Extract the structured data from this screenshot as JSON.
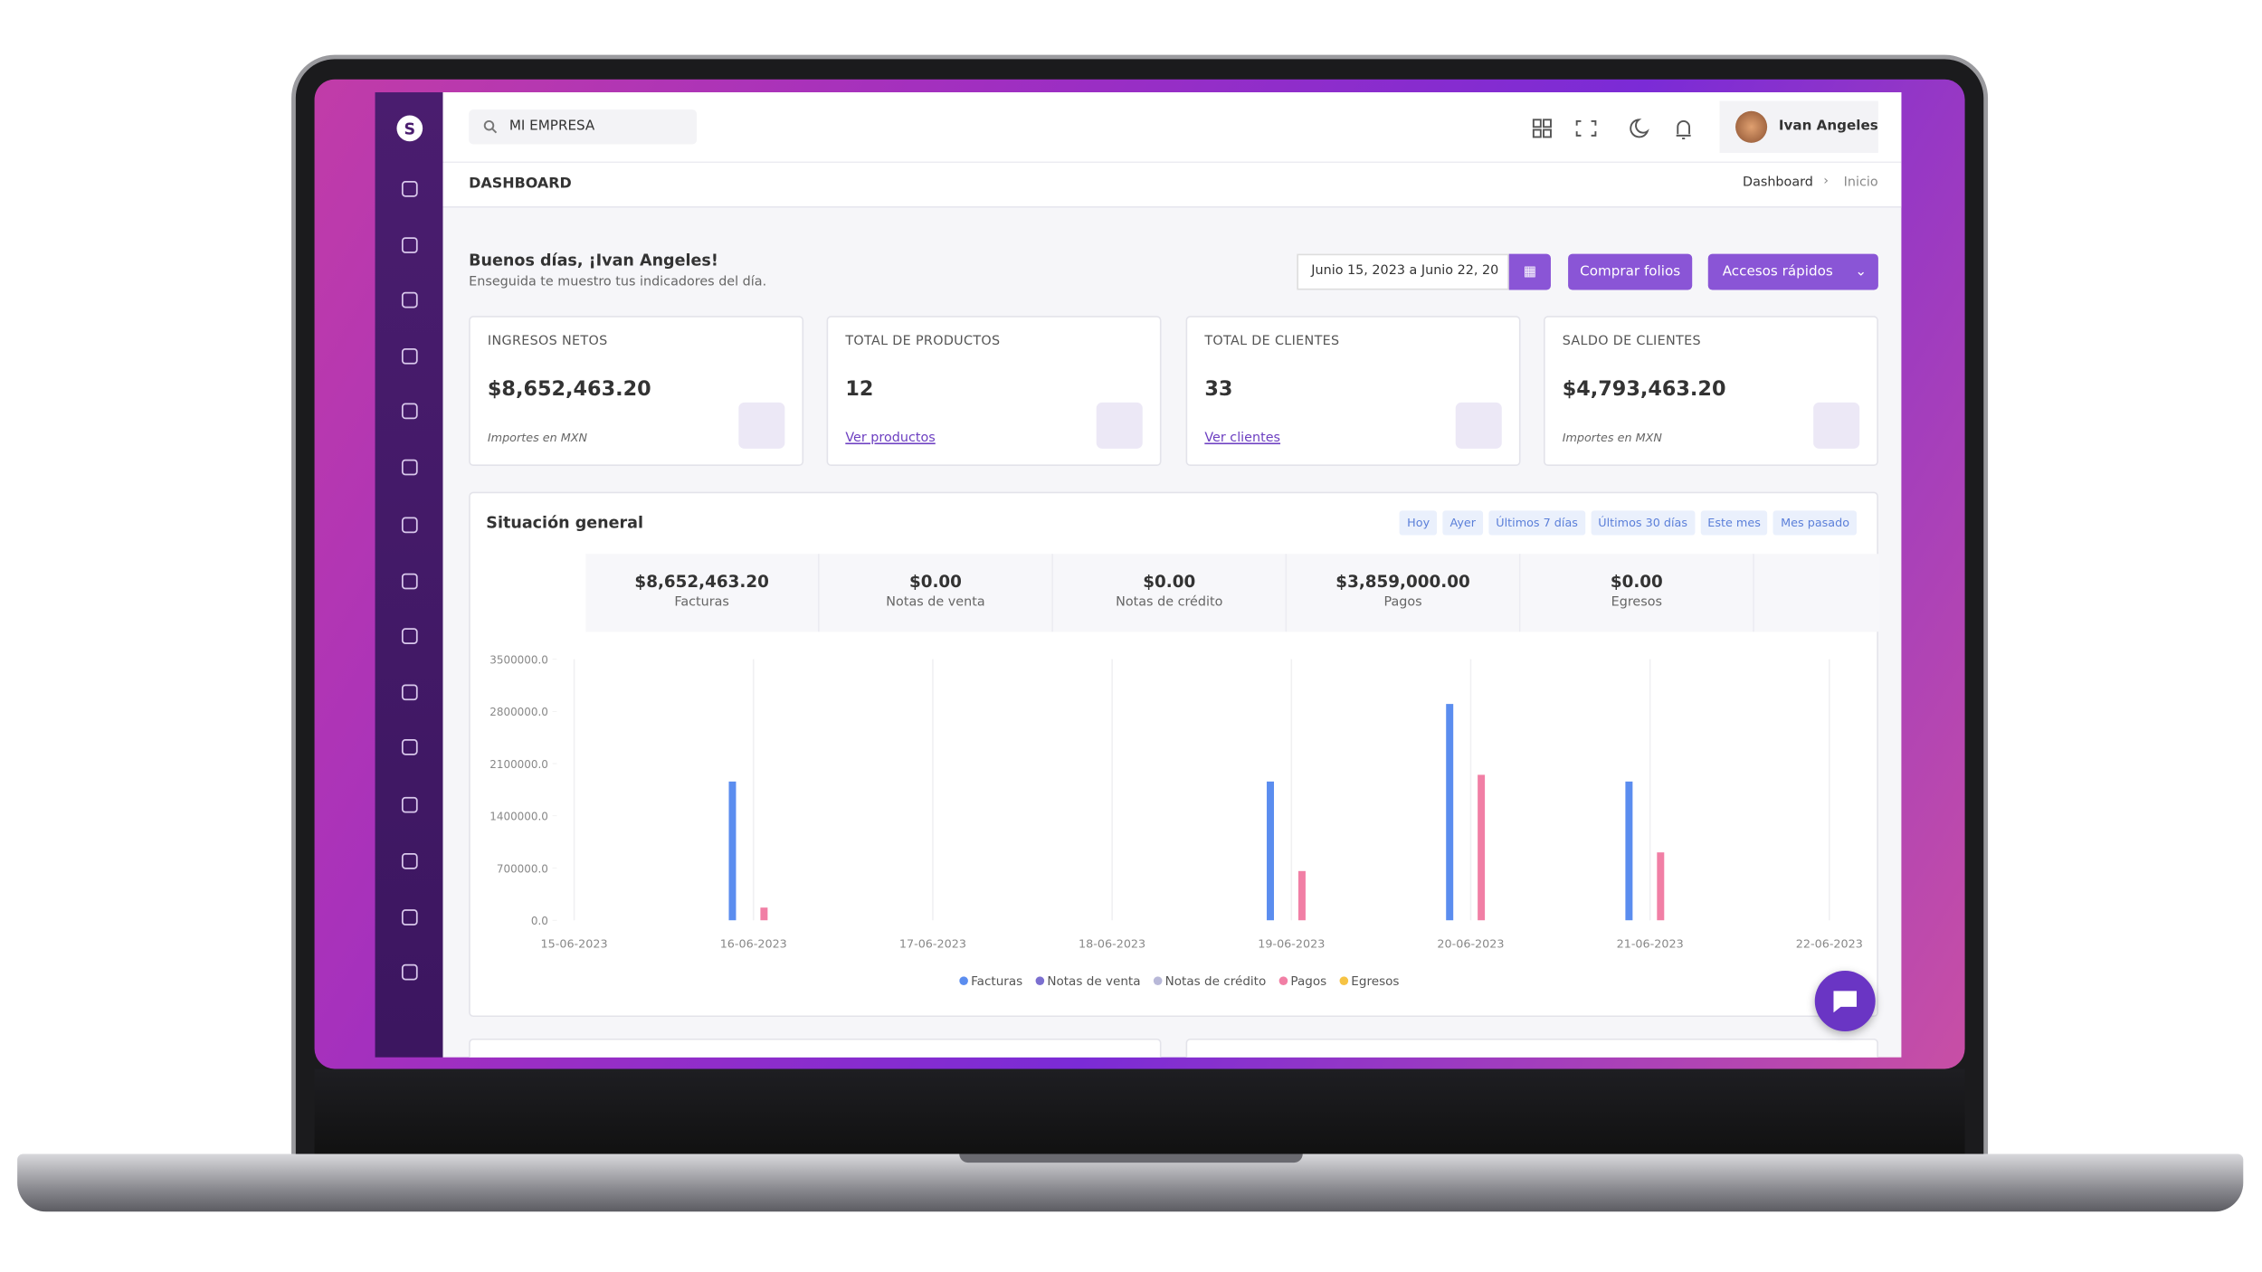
{
  "header": {
    "search": "MI EMPRESA",
    "user": "Ivan Angeles",
    "page_title": "DASHBOARD",
    "breadcrumb": [
      "Dashboard",
      "Inicio"
    ]
  },
  "greeting": {
    "title": "Buenos días, ¡Ivan Angeles!",
    "subtitle": "Enseguida te muestro tus indicadores del día.",
    "date_range": "Junio 15, 2023 a Junio 22, 20",
    "buttons": [
      "Comprar folios",
      "Accesos rápidos"
    ]
  },
  "cards": [
    {
      "label": "INGRESOS NETOS",
      "value": "$8,652,463.20",
      "note": "Importes en MXN"
    },
    {
      "label": "TOTAL DE PRODUCTOS",
      "value": 12,
      "link": "Ver productos"
    },
    {
      "label": "TOTAL DE CLIENTES",
      "value": 33,
      "link": "Ver clientes"
    },
    {
      "label": "SALDO DE CLIENTES",
      "value": "$4,793,463.20",
      "note": "Importes en MXN"
    }
  ],
  "summary": {
    "title": "Situación general",
    "filters": [
      "Hoy",
      "Ayer",
      "Últimos 7 días",
      "Últimos 30 días",
      "Este mes",
      "Mes pasado"
    ],
    "totals": [
      {
        "value": "$8,652,463.20",
        "label": "Facturas"
      },
      {
        "value": "$0.00",
        "label": "Notas de venta"
      },
      {
        "value": "$0.00",
        "label": "Notas de crédito"
      },
      {
        "value": "$3,859,000.00",
        "label": "Pagos"
      },
      {
        "value": "$0.00",
        "label": "Egresos"
      }
    ]
  },
  "chart_data": {
    "type": "bar",
    "categories": [
      "15-06-2023",
      "16-06-2023",
      "17-06-2023",
      "18-06-2023",
      "19-06-2023",
      "20-06-2023",
      "21-06-2023",
      "22-06-2023"
    ],
    "series": [
      {
        "name": "Facturas",
        "color": "#5b8def",
        "values": [
          0,
          1860000,
          0,
          0,
          1860000,
          2900000,
          1860000,
          0
        ]
      },
      {
        "name": "Notas de venta",
        "color": "#7b6fd0",
        "values": [
          0,
          0,
          0,
          0,
          0,
          0,
          0,
          0
        ]
      },
      {
        "name": "Notas de crédito",
        "color": "#b8b8d8",
        "values": [
          0,
          0,
          0,
          0,
          0,
          0,
          0,
          0
        ]
      },
      {
        "name": "Pagos",
        "color": "#f17fa5",
        "values": [
          0,
          170000,
          0,
          0,
          660000,
          1950000,
          910000,
          0
        ]
      },
      {
        "name": "Egresos",
        "color": "#f6c344",
        "values": [
          0,
          0,
          0,
          0,
          0,
          0,
          0,
          0
        ]
      }
    ],
    "ylim": [
      0,
      3500000
    ],
    "yticks": [
      {
        "value": 0,
        "label": "0.0"
      },
      {
        "value": 700000,
        "label": "700000.0"
      },
      {
        "value": 1400000,
        "label": "1400000.0"
      },
      {
        "value": 2100000,
        "label": "2100000.0"
      },
      {
        "value": 2800000,
        "label": "2800000.0"
      },
      {
        "value": 3500000,
        "label": "3500000.0"
      }
    ],
    "grid": true
  }
}
